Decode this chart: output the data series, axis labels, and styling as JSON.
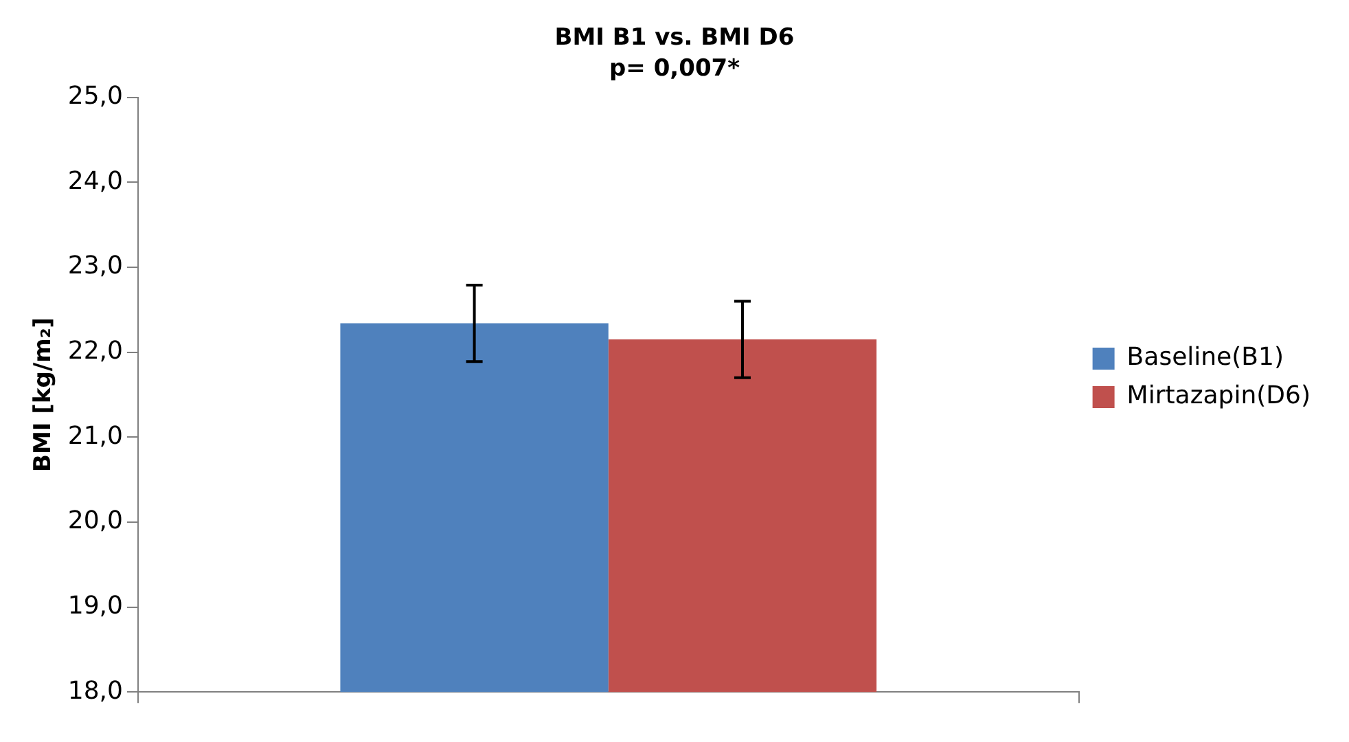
{
  "chart_data": {
    "type": "bar",
    "title": "BMI B1 vs. BMI D6",
    "subtitle": "p= 0,007*",
    "ylabel": "BMI [kg/m₂]",
    "categories": [
      null
    ],
    "series": [
      {
        "name": "Baseline(B1)",
        "color": "#4f81bd",
        "values": [
          22.34
        ],
        "errors": [
          0.45
        ]
      },
      {
        "name": "Mirtazapin(D6)",
        "color": "#c0504d",
        "values": [
          22.15
        ],
        "errors": [
          0.45
        ]
      }
    ],
    "ylim": [
      18,
      25
    ],
    "yticks": [
      {
        "value": 18,
        "label": "18,0"
      },
      {
        "value": 19,
        "label": "19,0"
      },
      {
        "value": 20,
        "label": "20,0"
      },
      {
        "value": 21,
        "label": "21,0"
      },
      {
        "value": 22,
        "label": "22,0"
      },
      {
        "value": 23,
        "label": "23,0"
      },
      {
        "value": 24,
        "label": "24,0"
      },
      {
        "value": 25,
        "label": "25,0"
      }
    ],
    "grid": false,
    "legend": "right"
  }
}
